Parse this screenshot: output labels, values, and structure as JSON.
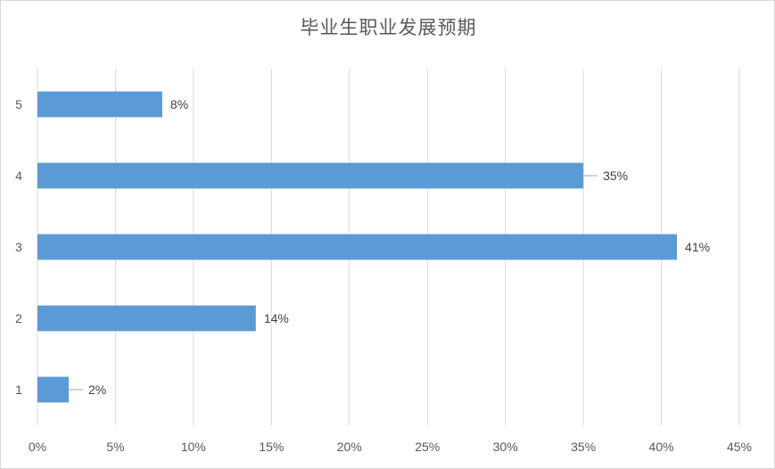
{
  "chart_data": {
    "type": "bar",
    "orientation": "horizontal",
    "title": "毕业生职业发展预期",
    "categories": [
      "1",
      "2",
      "3",
      "4",
      "5"
    ],
    "values": [
      2,
      14,
      41,
      35,
      8
    ],
    "data_labels": [
      "2%",
      "14%",
      "41%",
      "35%",
      "8%"
    ],
    "x_ticks": [
      "0%",
      "5%",
      "10%",
      "15%",
      "20%",
      "25%",
      "30%",
      "35%",
      "40%",
      "45%"
    ],
    "xlim": [
      0,
      45
    ],
    "xlabel": "",
    "ylabel": "",
    "grid": "vertical",
    "legend": "none",
    "bar_color": "#5b9bd5",
    "grid_color": "#d9d9d9"
  }
}
